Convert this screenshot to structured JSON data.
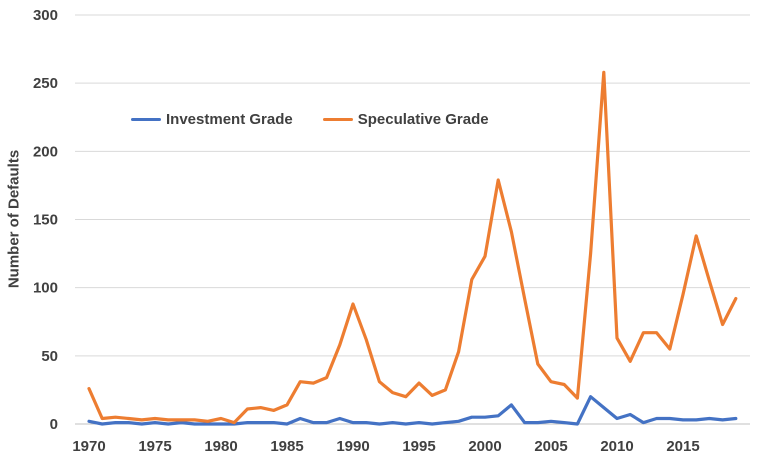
{
  "chart_data": {
    "type": "line",
    "title": "",
    "ylabel": "Number of Defaults",
    "xlabel": "",
    "ylim": [
      0,
      300
    ],
    "ytick_step": 50,
    "yticks": [
      0,
      50,
      100,
      150,
      200,
      250,
      300
    ],
    "xticks": [
      1970,
      1975,
      1980,
      1985,
      1990,
      1995,
      2000,
      2005,
      2010,
      2015
    ],
    "grid": "horizontal",
    "legend_position": "inside-top-left",
    "x": [
      1970,
      1971,
      1972,
      1973,
      1974,
      1975,
      1976,
      1977,
      1978,
      1979,
      1980,
      1981,
      1982,
      1983,
      1984,
      1985,
      1986,
      1987,
      1988,
      1989,
      1990,
      1991,
      1992,
      1993,
      1994,
      1995,
      1996,
      1997,
      1998,
      1999,
      2000,
      2001,
      2002,
      2003,
      2004,
      2005,
      2006,
      2007,
      2008,
      2009,
      2010,
      2011,
      2012,
      2013,
      2014,
      2015,
      2016,
      2017,
      2018,
      2019
    ],
    "series": [
      {
        "name": "Investment Grade",
        "color": "#4472C4",
        "values": [
          2,
          0,
          1,
          1,
          0,
          1,
          0,
          1,
          0,
          0,
          0,
          0,
          1,
          1,
          1,
          0,
          4,
          1,
          1,
          4,
          1,
          1,
          0,
          1,
          0,
          1,
          0,
          1,
          2,
          5,
          5,
          6,
          14,
          1,
          1,
          2,
          1,
          0,
          20,
          12,
          4,
          7,
          1,
          4,
          4,
          3,
          3,
          4,
          3,
          4
        ]
      },
      {
        "name": "Speculative Grade",
        "color": "#ED7D31",
        "values": [
          26,
          4,
          5,
          4,
          3,
          4,
          3,
          3,
          3,
          2,
          4,
          1,
          11,
          12,
          10,
          14,
          31,
          30,
          34,
          58,
          88,
          62,
          31,
          23,
          20,
          30,
          21,
          25,
          53,
          106,
          123,
          179,
          141,
          92,
          44,
          31,
          29,
          19,
          125,
          258,
          63,
          46,
          67,
          67,
          55,
          95,
          138,
          105,
          73,
          92
        ]
      }
    ],
    "colors": {
      "gridline": "#D9D9D9",
      "axis_line": "#C0C0C0",
      "tick_text": "#404040"
    }
  }
}
